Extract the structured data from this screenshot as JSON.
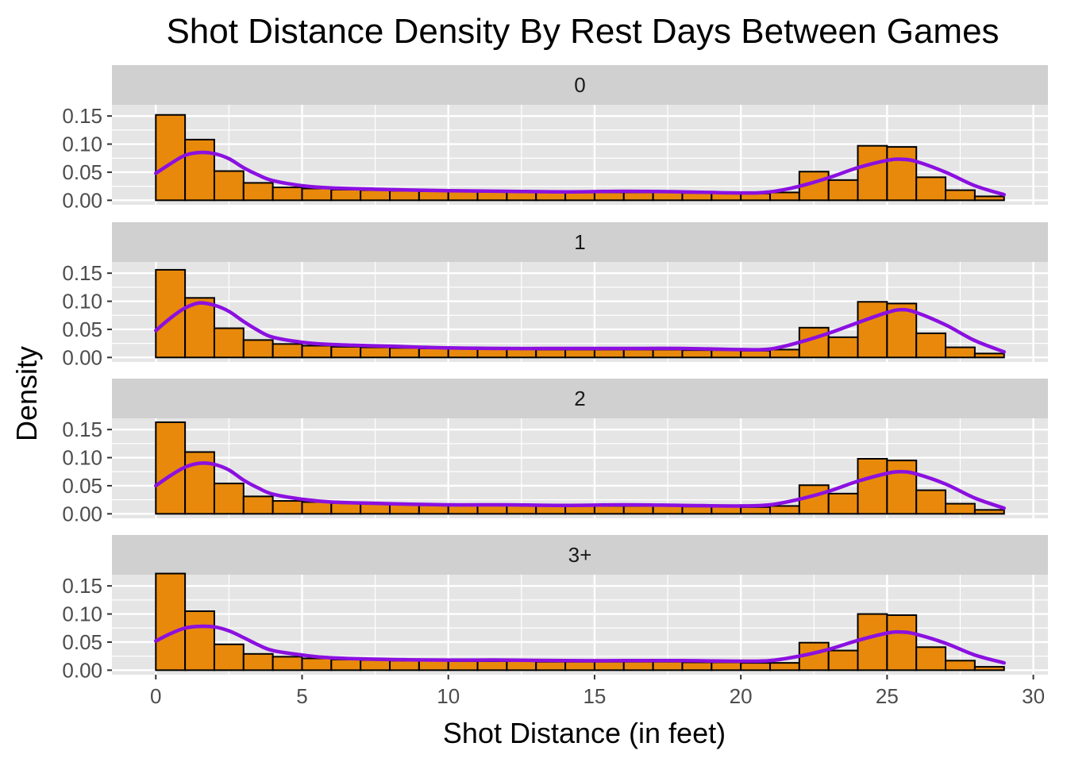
{
  "chart_data": {
    "type": "histogram",
    "title": "Shot Distance Density By Rest Days Between Games",
    "xlabel": "Shot Distance (in feet)",
    "ylabel": "Density",
    "xlim": [
      -1.5,
      30.5
    ],
    "ylim": [
      -0.008,
      0.17
    ],
    "x_ticks": [
      0,
      5,
      10,
      15,
      20,
      25,
      30
    ],
    "y_ticks": [
      0.0,
      0.05,
      0.1,
      0.15
    ],
    "y_tick_labels": [
      "0.00",
      "0.05",
      "0.10",
      "0.15"
    ],
    "bin_edges": [
      0,
      1,
      2,
      3,
      4,
      5,
      6,
      7,
      8,
      9,
      10,
      11,
      12,
      13,
      14,
      15,
      16,
      17,
      18,
      19,
      20,
      21,
      22,
      23,
      24,
      25,
      26,
      27,
      28,
      29
    ],
    "grid": true,
    "legend": "none",
    "colors": {
      "bar_fill": "#E8890C",
      "bar_stroke": "#000000",
      "density_line": "#8B10E0",
      "panel_bg": "#E5E5E5",
      "strip_bg": "#D0D0D0",
      "grid": "#FFFFFF"
    },
    "panels": [
      {
        "label": "0",
        "bars": [
          0.152,
          0.108,
          0.052,
          0.031,
          0.023,
          0.021,
          0.019,
          0.018,
          0.017,
          0.016,
          0.016,
          0.015,
          0.015,
          0.014,
          0.014,
          0.014,
          0.014,
          0.014,
          0.013,
          0.013,
          0.012,
          0.014,
          0.051,
          0.036,
          0.097,
          0.095,
          0.041,
          0.018,
          0.007
        ],
        "density": [
          [
            0,
            0.048
          ],
          [
            0.5,
            0.065
          ],
          [
            1,
            0.08
          ],
          [
            1.5,
            0.085
          ],
          [
            2,
            0.083
          ],
          [
            2.5,
            0.074
          ],
          [
            3,
            0.058
          ],
          [
            3.5,
            0.045
          ],
          [
            4,
            0.035
          ],
          [
            5,
            0.026
          ],
          [
            6,
            0.022
          ],
          [
            8,
            0.019
          ],
          [
            10,
            0.017
          ],
          [
            12,
            0.016
          ],
          [
            14,
            0.015
          ],
          [
            16,
            0.016
          ],
          [
            18,
            0.015
          ],
          [
            20,
            0.013
          ],
          [
            21,
            0.015
          ],
          [
            22,
            0.025
          ],
          [
            23,
            0.04
          ],
          [
            24,
            0.058
          ],
          [
            25,
            0.071
          ],
          [
            25.5,
            0.073
          ],
          [
            26,
            0.069
          ],
          [
            27,
            0.05
          ],
          [
            28,
            0.026
          ],
          [
            29,
            0.01
          ]
        ]
      },
      {
        "label": "1",
        "bars": [
          0.156,
          0.106,
          0.052,
          0.031,
          0.024,
          0.021,
          0.019,
          0.018,
          0.017,
          0.016,
          0.016,
          0.015,
          0.015,
          0.014,
          0.014,
          0.014,
          0.014,
          0.014,
          0.013,
          0.013,
          0.012,
          0.014,
          0.053,
          0.036,
          0.099,
          0.096,
          0.043,
          0.018,
          0.007
        ],
        "density": [
          [
            0,
            0.048
          ],
          [
            0.5,
            0.07
          ],
          [
            1,
            0.088
          ],
          [
            1.5,
            0.097
          ],
          [
            2,
            0.093
          ],
          [
            2.5,
            0.082
          ],
          [
            3,
            0.064
          ],
          [
            3.5,
            0.048
          ],
          [
            4,
            0.036
          ],
          [
            5,
            0.027
          ],
          [
            6,
            0.023
          ],
          [
            8,
            0.02
          ],
          [
            10,
            0.017
          ],
          [
            12,
            0.016
          ],
          [
            14,
            0.016
          ],
          [
            16,
            0.016
          ],
          [
            18,
            0.016
          ],
          [
            20,
            0.014
          ],
          [
            21,
            0.015
          ],
          [
            22,
            0.027
          ],
          [
            23,
            0.043
          ],
          [
            24,
            0.062
          ],
          [
            25,
            0.08
          ],
          [
            25.5,
            0.085
          ],
          [
            26,
            0.08
          ],
          [
            27,
            0.058
          ],
          [
            28,
            0.03
          ],
          [
            29,
            0.01
          ]
        ]
      },
      {
        "label": "2",
        "bars": [
          0.163,
          0.11,
          0.054,
          0.031,
          0.023,
          0.021,
          0.019,
          0.018,
          0.017,
          0.016,
          0.016,
          0.015,
          0.015,
          0.014,
          0.014,
          0.014,
          0.014,
          0.014,
          0.013,
          0.013,
          0.012,
          0.014,
          0.051,
          0.036,
          0.098,
          0.095,
          0.042,
          0.018,
          0.007
        ],
        "density": [
          [
            0,
            0.05
          ],
          [
            0.5,
            0.068
          ],
          [
            1,
            0.083
          ],
          [
            1.5,
            0.09
          ],
          [
            2,
            0.088
          ],
          [
            2.5,
            0.078
          ],
          [
            3,
            0.06
          ],
          [
            3.5,
            0.046
          ],
          [
            4,
            0.035
          ],
          [
            5,
            0.026
          ],
          [
            6,
            0.021
          ],
          [
            8,
            0.018
          ],
          [
            10,
            0.016
          ],
          [
            12,
            0.016
          ],
          [
            14,
            0.015
          ],
          [
            16,
            0.016
          ],
          [
            18,
            0.015
          ],
          [
            20,
            0.014
          ],
          [
            21,
            0.016
          ],
          [
            22,
            0.026
          ],
          [
            23,
            0.04
          ],
          [
            24,
            0.058
          ],
          [
            25,
            0.072
          ],
          [
            25.5,
            0.075
          ],
          [
            26,
            0.071
          ],
          [
            27,
            0.053
          ],
          [
            28,
            0.028
          ],
          [
            29,
            0.01
          ]
        ]
      },
      {
        "label": "3+",
        "bars": [
          0.172,
          0.105,
          0.046,
          0.029,
          0.024,
          0.021,
          0.019,
          0.018,
          0.017,
          0.017,
          0.016,
          0.016,
          0.016,
          0.015,
          0.015,
          0.015,
          0.015,
          0.015,
          0.014,
          0.014,
          0.013,
          0.013,
          0.049,
          0.035,
          0.1,
          0.098,
          0.041,
          0.017,
          0.006
        ],
        "density": [
          [
            0,
            0.052
          ],
          [
            0.5,
            0.065
          ],
          [
            1,
            0.075
          ],
          [
            1.5,
            0.078
          ],
          [
            2,
            0.077
          ],
          [
            2.5,
            0.07
          ],
          [
            3,
            0.058
          ],
          [
            3.5,
            0.045
          ],
          [
            4,
            0.035
          ],
          [
            5,
            0.027
          ],
          [
            6,
            0.022
          ],
          [
            8,
            0.019
          ],
          [
            10,
            0.018
          ],
          [
            12,
            0.018
          ],
          [
            14,
            0.017
          ],
          [
            16,
            0.017
          ],
          [
            18,
            0.017
          ],
          [
            20,
            0.016
          ],
          [
            21,
            0.017
          ],
          [
            22,
            0.025
          ],
          [
            23,
            0.037
          ],
          [
            24,
            0.053
          ],
          [
            25,
            0.066
          ],
          [
            25.5,
            0.068
          ],
          [
            26,
            0.064
          ],
          [
            27,
            0.048
          ],
          [
            28,
            0.027
          ],
          [
            29,
            0.013
          ]
        ]
      }
    ]
  }
}
